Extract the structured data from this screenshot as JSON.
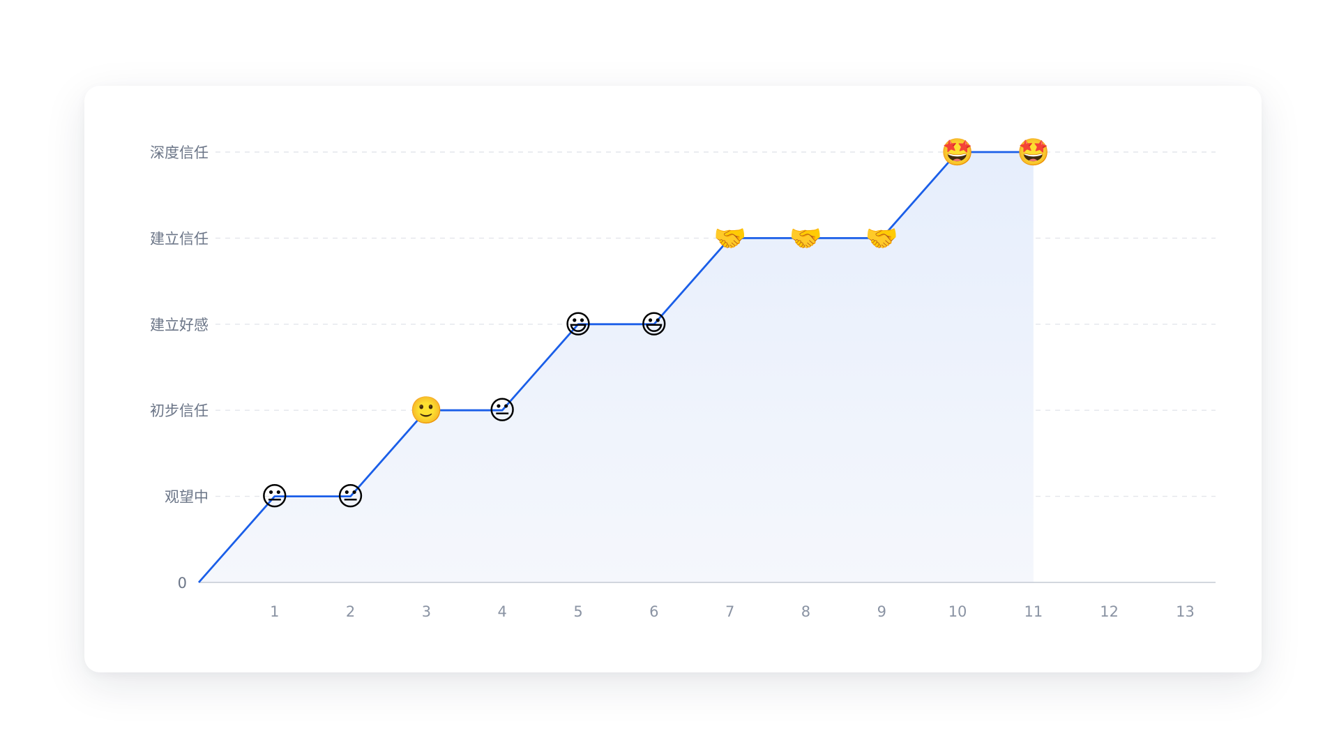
{
  "chart_data": {
    "type": "line",
    "title": "",
    "xlabel": "",
    "ylabel": "",
    "x_ticks": [
      "1",
      "2",
      "3",
      "4",
      "5",
      "6",
      "7",
      "8",
      "9",
      "10",
      "11",
      "12",
      "13"
    ],
    "y_ticks": [
      "0",
      "观望中",
      "初步信任",
      "建立好感",
      "建立信任",
      "深度信任"
    ],
    "xlim": [
      0,
      13.4
    ],
    "ylim": [
      0,
      5
    ],
    "grid": "horizontal-dashed",
    "area_fill": true,
    "series": [
      {
        "x": [
          0,
          1,
          2,
          3,
          4,
          5,
          6,
          7,
          8,
          9,
          10,
          11
        ],
        "y": [
          0,
          1,
          1,
          2,
          2,
          3,
          3,
          4,
          4,
          4,
          5,
          5
        ],
        "markers": [
          "",
          "neutral-face",
          "neutral-face",
          "slightly-smiling-face",
          "neutral-face",
          "grinning-face-big-eyes",
          "grinning-face-big-eyes",
          "handshake",
          "handshake",
          "handshake",
          "star-struck",
          "star-struck"
        ],
        "marker_glyphs": [
          "",
          "😐",
          "😐",
          "🙂",
          "😐",
          "😃",
          "😃",
          "🤝",
          "🤝",
          "🤝",
          "🤩",
          "🤩"
        ]
      }
    ],
    "colors": {
      "line": "#1a5ee8",
      "area_top": "#e6eefc",
      "area_bottom": "#f5f7fc"
    }
  }
}
